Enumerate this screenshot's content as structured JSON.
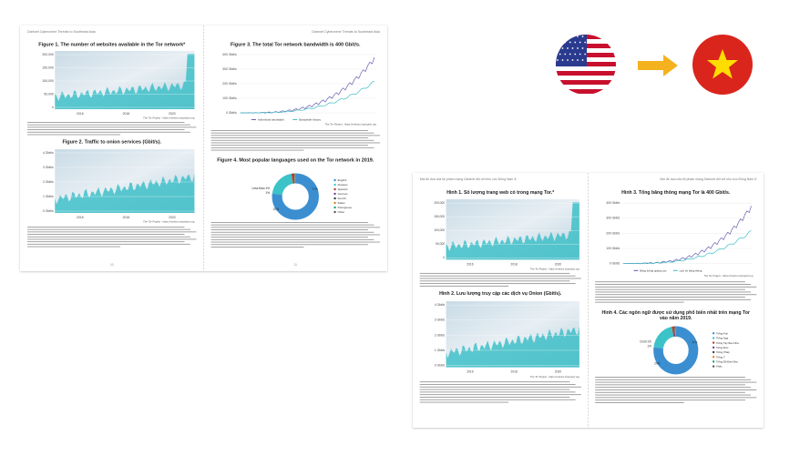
{
  "spreads": [
    {
      "header_left": "Darknet Cybercrime Threats to Southeast Asia",
      "header_right": "Darknet Cybercrime Threats to Southeast Asia",
      "fig1": {
        "title": [
          "Figure 1. The number of websites available in the Tor network*"
        ],
        "yticks": [
          "200,000",
          "150,000",
          "100,000",
          "50,000",
          "0"
        ],
        "xticks": [
          "2016",
          "2018",
          "2020"
        ],
        "source": "The Tor Project - https://metrics.torproject.org"
      },
      "fig2": {
        "title": [
          "Figure 2. Traffic to onion services (Gbit/s)."
        ],
        "yticks": [
          "4 Gbit/s",
          "3 Gbit/s",
          "2 Gbit/s",
          "1 Gbit/s",
          "0 Gbit/s"
        ],
        "xticks": [
          "2016",
          "2018",
          "2020"
        ],
        "source": "The Tor Project - https://metrics.torproject.org"
      },
      "fig3": {
        "title": [
          "Figure 3. The total Tor network bandwidth is 400 Gbit/s."
        ],
        "yticks": [
          "400 Gbit/s",
          "300 Gbit/s",
          "200 Gbit/s",
          "100 Gbit/s",
          "0 Gbit/s"
        ],
        "legend": [
          "Advertised bandwidth",
          "Bandwidth history"
        ],
        "source": "The Tor Project - https://metrics.torproject.org"
      },
      "fig4": {
        "title": [
          "Figure 4. Most popular languages used on the Tor network in 2019."
        ],
        "legend": [
          "English",
          "Russian",
          "Spanish",
          "German",
          "French",
          "Italian",
          "Portuguese",
          "Other"
        ],
        "labels": [
          "Less than 1%",
          "1%",
          "77%",
          "20%"
        ]
      },
      "page_numbers": [
        "10",
        "11"
      ]
    },
    {
      "header_left": "Mối đe dọa của tội phạm mạng Darknet đối với khu vực Đông Nam Á",
      "header_right": "Mối đe dọa của tội phạm mạng Darknet đối với khu vực Đông Nam Á",
      "fig1": {
        "title": [
          "Hình 1. Số lượng trang web có trong mạng Tor.*"
        ],
        "yticks": [
          "200,000",
          "150,000",
          "100,000",
          "50,000",
          "0"
        ],
        "xticks": [
          "2016",
          "2018",
          "2020"
        ],
        "source": "The Tor Project - https://metrics.torproject.org"
      },
      "fig2": {
        "title": [
          "Hình 2. Lưu lượng truy cập các dịch vụ Onion (Gbit/s)."
        ],
        "yticks": [
          "4 Gbit/s",
          "3 Gbit/s",
          "2 Gbit/s",
          "1 Gbit/s",
          "0 Gbit/s"
        ],
        "xticks": [
          "2016",
          "2018",
          "2020"
        ],
        "source": "The Tor Project - https://metrics.torproject.org"
      },
      "fig3": {
        "title": [
          "Hình 3. Tổng băng thông mạng Tor là 400 Gbit/s."
        ],
        "yticks": [
          "400 Gbit/s",
          "300 Gbit/s",
          "200 Gbit/s",
          "100 Gbit/s",
          "0 Gbit/s"
        ],
        "legend": [
          "Băng thông quảng cáo",
          "Lịch sử băng thông"
        ],
        "source": "The Tor Project - https://metrics.torproject.org"
      },
      "fig4": {
        "title": [
          "Hình 4. Các ngôn ngữ được sử dụng phổ biến nhất trên mạng Tor",
          "vào năm 2019."
        ],
        "legend": [
          "Tiếng Anh",
          "Tiếng Nga",
          "Tiếng Tây Ban Nha",
          "Tiếng Đức",
          "Tiếng Pháp",
          "Tiếng Ý",
          "Tiếng Bồ Đào Nha",
          "Khác"
        ],
        "labels": [
          "Dưới 1%",
          "1%",
          "77%",
          "20%"
        ]
      }
    }
  ]
}
